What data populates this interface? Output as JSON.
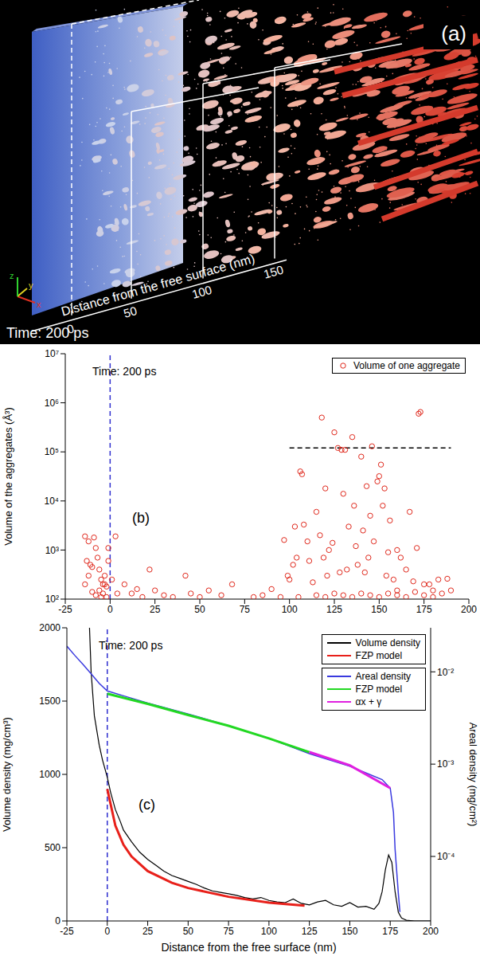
{
  "panel_a": {
    "label": "(a)",
    "time": "Time: 200 ps",
    "axis_title": "Distance from the free surface (nm)",
    "ticks": [
      "0",
      "50",
      "100",
      "150"
    ],
    "axes": [
      "x",
      "y",
      "z"
    ]
  },
  "chart_data": [
    {
      "type": "scatter",
      "panel": "(b)",
      "annotation": "Time: 200 ps",
      "ylabel": "Volume of the aggregates (Å³)",
      "xlim": [
        -25,
        200
      ],
      "xticks": [
        -25,
        0,
        25,
        50,
        75,
        100,
        125,
        150,
        175,
        200
      ],
      "ylim": [
        100,
        10000000
      ],
      "yticks": [
        {
          "value": 100,
          "label": "10²"
        },
        {
          "value": 1000,
          "label": "10³"
        },
        {
          "value": 10000,
          "label": "10⁴"
        },
        {
          "value": 100000,
          "label": "10⁵"
        },
        {
          "value": 1000000,
          "label": "10⁶"
        },
        {
          "value": 10000000,
          "label": "10⁷"
        }
      ],
      "log": "y",
      "legend": "top-right",
      "vertical_line_x": 0,
      "vertical_line_color": "#3030d0",
      "threshold_line": {
        "y": 120000,
        "x": [
          100,
          190
        ],
        "color": "#000000"
      },
      "series": [
        {
          "name": "Volume of one aggregate",
          "color": "#e0281c",
          "marker": "open-circle",
          "x": [
            -14,
            -12,
            -13,
            -11,
            -10,
            -9,
            -8,
            -12,
            -7,
            -6,
            -5,
            -4,
            -3,
            -2,
            -1,
            -14,
            -10,
            -8,
            -6,
            -4,
            -2,
            1,
            3,
            4,
            -1,
            -3,
            -5,
            8,
            12,
            15,
            18,
            22,
            25,
            30,
            35,
            42,
            45,
            50,
            55,
            62,
            68,
            80,
            85,
            90,
            95,
            97,
            99,
            100,
            102,
            103,
            104,
            106,
            107,
            108,
            110,
            111,
            113,
            115,
            117,
            118,
            119,
            120,
            121,
            122,
            124,
            125,
            127,
            128,
            129,
            130,
            131,
            132,
            133,
            135,
            136,
            137,
            138,
            140,
            141,
            142,
            143,
            144,
            145,
            146,
            147,
            149,
            150,
            151,
            152,
            153,
            154,
            155,
            156,
            158,
            160,
            162,
            165,
            167,
            169,
            171,
            172,
            173,
            175,
            178,
            180,
            183,
            185,
            188,
            190,
            105,
            115,
            125,
            135,
            145,
            155,
            160,
            165,
            170,
            175,
            180,
            160,
            150,
            140,
            130,
            120
          ],
          "values": [
            1900,
            1500,
            600,
            500,
            450,
            1800,
            1100,
            300,
            700,
            400,
            250,
            200,
            300,
            180,
            1100,
            200,
            140,
            120,
            150,
            130,
            110,
            250,
            1900,
            130,
            600,
            200,
            110,
            200,
            130,
            160,
            110,
            400,
            150,
            120,
            110,
            300,
            130,
            110,
            150,
            120,
            200,
            110,
            120,
            160,
            110,
            1600,
            300,
            250,
            500,
            3000,
            700,
            40000,
            35000,
            3300,
            1500,
            600,
            220,
            6000,
            2000,
            500000,
            700,
            18000,
            300,
            1000,
            1400,
            250000,
            120000,
            350,
            110000,
            14000,
            110000,
            400,
            3000,
            200000,
            8000,
            1200,
            500,
            80000,
            2500,
            350,
            20000,
            700,
            5000,
            130000,
            1500,
            25000,
            32000,
            55000,
            8000,
            18000,
            300,
            900,
            4000,
            250,
            1000,
            700,
            400,
            6000,
            230,
            1100,
            600000,
            650000,
            120,
            200,
            150,
            250,
            130,
            260,
            150,
            110,
            120,
            130,
            110,
            120,
            130,
            150,
            110,
            140,
            200,
            110,
            120,
            110,
            130,
            120,
            110
          ]
        }
      ]
    },
    {
      "type": "line",
      "panel": "(c)",
      "annotation": "Time: 200 ps",
      "xlabel": "Distance from the free surface (nm)",
      "ylabel": "Volume density (mg/cm³)",
      "y2label": "Areal density (mg/cm²)",
      "xlim": [
        -25,
        200
      ],
      "xticks": [
        -25,
        0,
        25,
        50,
        75,
        100,
        125,
        150,
        175,
        200
      ],
      "ylim": [
        0,
        2000
      ],
      "yticks": [
        0,
        500,
        1000,
        1500,
        2000
      ],
      "y2lim": [
        2e-05,
        0.03
      ],
      "y2ticks": [
        {
          "value": 0.0001,
          "label": "10⁻⁴"
        },
        {
          "value": 0.001,
          "label": "10⁻³"
        },
        {
          "value": 0.01,
          "label": "10⁻²"
        }
      ],
      "log": "y2",
      "legend": "top-right",
      "vertical_line_x": 0,
      "vertical_line_color": "#3030d0",
      "series": [
        {
          "name": "Volume density",
          "color": "#000000",
          "axis": "y",
          "x": [
            -11,
            -10,
            -8,
            -5,
            -3,
            0,
            2,
            5,
            8,
            10,
            15,
            20,
            25,
            30,
            35,
            40,
            45,
            50,
            55,
            60,
            65,
            70,
            75,
            80,
            85,
            90,
            95,
            100,
            105,
            110,
            115,
            120,
            125,
            130,
            135,
            140,
            145,
            150,
            155,
            160,
            165,
            168,
            170,
            172,
            174,
            176,
            178,
            180,
            182,
            185,
            190,
            200
          ],
          "values": [
            2000,
            1700,
            1400,
            1200,
            1100,
            980,
            880,
            760,
            680,
            620,
            540,
            470,
            420,
            380,
            340,
            310,
            290,
            270,
            250,
            225,
            205,
            195,
            185,
            175,
            160,
            150,
            160,
            140,
            130,
            125,
            150,
            120,
            110,
            130,
            140,
            110,
            100,
            125,
            95,
            100,
            80,
            120,
            200,
            350,
            450,
            400,
            200,
            60,
            20,
            5,
            0,
            0
          ]
        },
        {
          "name": "FZP model",
          "color": "#e8201a",
          "axis": "y",
          "x": [
            0,
            5,
            10,
            15,
            25,
            40,
            50,
            75,
            100,
            122
          ],
          "values": [
            900,
            650,
            520,
            440,
            340,
            260,
            225,
            165,
            125,
            105
          ]
        },
        {
          "name": "Areal density",
          "color": "#3a3adf",
          "axis": "y2",
          "x": [
            -25,
            -20,
            -15,
            -10,
            -5,
            0,
            10,
            25,
            50,
            75,
            100,
            125,
            150,
            170,
            175,
            177,
            178,
            180,
            181
          ],
          "values": [
            0.019,
            0.015,
            0.012,
            0.0095,
            0.0075,
            0.0062,
            0.0055,
            0.0046,
            0.0035,
            0.0026,
            0.0019,
            0.0013,
            0.00095,
            0.00068,
            0.00055,
            0.0003,
            0.00012,
            4e-05,
            2.5e-05
          ]
        },
        {
          "name": "FZP model",
          "color": "#22d822",
          "axis": "y2",
          "x": [
            0,
            25,
            50,
            75,
            100,
            125
          ],
          "values": [
            0.0058,
            0.0045,
            0.0034,
            0.0026,
            0.0019,
            0.00135
          ]
        },
        {
          "name": "αx + γ",
          "color": "#e020e0",
          "axis": "y2",
          "x": [
            125,
            150,
            175
          ],
          "values": [
            0.00135,
            0.00097,
            0.00055
          ]
        }
      ]
    }
  ]
}
